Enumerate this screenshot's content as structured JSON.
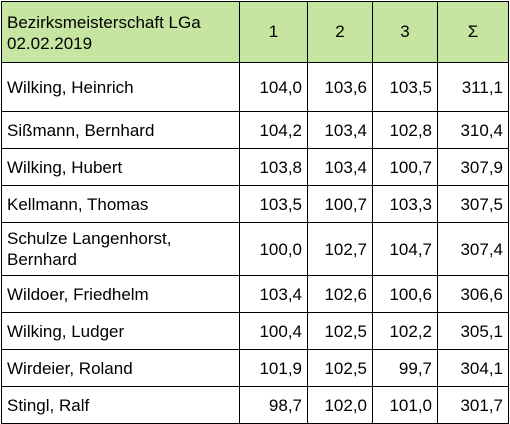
{
  "header": {
    "title_line1": "Bezirksmeisterschaft LGa",
    "title_line2": "02.02.2019",
    "round1": "1",
    "round2": "2",
    "round3": "3",
    "sum": "Σ"
  },
  "colors": {
    "header_background": "#c6e5a1",
    "border": "#000000"
  },
  "rows": [
    {
      "name": "Wilking, Heinrich",
      "r1": "104,0",
      "r2": "103,6",
      "r3": "103,5",
      "sum": "311,1"
    },
    {
      "name": "Sißmann, Bernhard",
      "r1": "104,2",
      "r2": "103,4",
      "r3": "102,8",
      "sum": "310,4"
    },
    {
      "name": "Wilking, Hubert",
      "r1": "103,8",
      "r2": "103,4",
      "r3": "100,7",
      "sum": "307,9"
    },
    {
      "name": "Kellmann, Thomas",
      "r1": "103,5",
      "r2": "100,7",
      "r3": "103,3",
      "sum": "307,5"
    },
    {
      "name": "Schulze Langenhorst, Bernhard",
      "r1": "100,0",
      "r2": "102,7",
      "r3": "104,7",
      "sum": "307,4"
    },
    {
      "name": "Wildoer, Friedhelm",
      "r1": "103,4",
      "r2": "102,6",
      "r3": "100,6",
      "sum": "306,6"
    },
    {
      "name": "Wilking, Ludger",
      "r1": "100,4",
      "r2": "102,5",
      "r3": "102,2",
      "sum": "305,1"
    },
    {
      "name": "Wirdeier, Roland",
      "r1": "101,9",
      "r2": "102,5",
      "r3": "99,7",
      "sum": "304,1"
    },
    {
      "name": "Stingl, Ralf",
      "r1": "98,7",
      "r2": "102,0",
      "r3": "101,0",
      "sum": "301,7"
    }
  ]
}
